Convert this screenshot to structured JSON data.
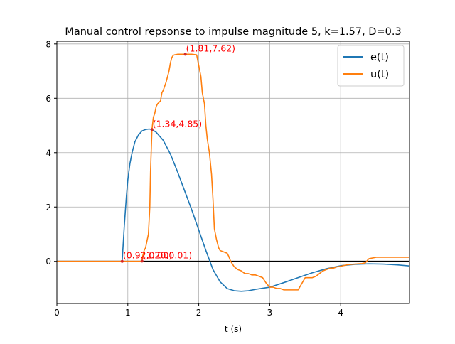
{
  "chart_data": {
    "type": "line",
    "title": "Manual control repsonse to impulse magnitude 5, k=1.57, D=0.3",
    "xlabel": "t (s)",
    "ylabel": "",
    "xlim": [
      0,
      4.97
    ],
    "ylim": [
      -1.55,
      8.1
    ],
    "grid": true,
    "legend_position": "top-right",
    "x_ticks": [
      0,
      1,
      2,
      3,
      4
    ],
    "y_ticks": [
      0,
      2,
      4,
      6,
      8
    ],
    "x_tick_labels": [
      "0",
      "1",
      "2",
      "3",
      "4"
    ],
    "y_tick_labels": [
      "0",
      "2",
      "4",
      "6",
      "8"
    ],
    "series": [
      {
        "name": "e(t)",
        "color": "#1f77b4",
        "x": [
          0,
          0.92,
          0.95,
          0.98,
          1.0,
          1.03,
          1.06,
          1.1,
          1.15,
          1.2,
          1.25,
          1.3,
          1.34,
          1.4,
          1.5,
          1.6,
          1.7,
          1.8,
          1.9,
          2.0,
          2.1,
          2.15,
          2.2,
          2.3,
          2.4,
          2.5,
          2.6,
          2.7,
          2.8,
          2.9,
          3.0,
          3.2,
          3.4,
          3.6,
          3.8,
          4.0,
          4.2,
          4.4,
          4.6,
          4.8,
          4.97
        ],
        "y": [
          0,
          0,
          1.3,
          2.4,
          3.0,
          3.6,
          4.0,
          4.4,
          4.65,
          4.8,
          4.85,
          4.87,
          4.85,
          4.75,
          4.45,
          3.95,
          3.3,
          2.6,
          1.9,
          1.15,
          0.4,
          0.05,
          -0.3,
          -0.75,
          -1.0,
          -1.08,
          -1.1,
          -1.08,
          -1.03,
          -0.99,
          -0.95,
          -0.78,
          -0.6,
          -0.42,
          -0.27,
          -0.16,
          -0.11,
          -0.09,
          -0.1,
          -0.13,
          -0.17
        ]
      },
      {
        "name": "u(t)",
        "color": "#ff7f0e",
        "x": [
          0,
          1.2,
          1.21,
          1.23,
          1.25,
          1.27,
          1.29,
          1.31,
          1.32,
          1.34,
          1.36,
          1.38,
          1.4,
          1.42,
          1.44,
          1.46,
          1.48,
          1.5,
          1.52,
          1.54,
          1.56,
          1.58,
          1.6,
          1.62,
          1.64,
          1.66,
          1.7,
          1.75,
          1.81,
          1.9,
          1.97,
          2.0,
          2.03,
          2.05,
          2.08,
          2.1,
          2.12,
          2.15,
          2.18,
          2.2,
          2.22,
          2.25,
          2.28,
          2.3,
          2.35,
          2.4,
          2.42,
          2.45,
          2.5,
          2.55,
          2.6,
          2.65,
          2.7,
          2.75,
          2.8,
          2.85,
          2.9,
          2.95,
          3.0,
          3.05,
          3.1,
          3.15,
          3.2,
          3.3,
          3.4,
          3.5,
          3.55,
          3.6,
          3.65,
          3.7,
          3.75,
          3.8,
          3.85,
          3.9,
          3.95,
          4.0,
          4.1,
          4.2,
          4.3,
          4.35,
          4.38,
          4.4,
          4.5,
          4.6,
          4.7,
          4.97
        ],
        "y": [
          0,
          0,
          0.2,
          0.4,
          0.5,
          0.75,
          1.0,
          2.0,
          3.3,
          4.85,
          5.3,
          5.45,
          5.7,
          5.8,
          5.85,
          5.9,
          6.2,
          6.3,
          6.45,
          6.6,
          6.8,
          7.0,
          7.3,
          7.5,
          7.58,
          7.6,
          7.62,
          7.62,
          7.62,
          7.62,
          7.6,
          7.2,
          6.8,
          6.2,
          5.8,
          5.0,
          4.5,
          4.0,
          3.2,
          2.3,
          1.2,
          0.8,
          0.5,
          0.4,
          0.35,
          0.3,
          0.2,
          0.0,
          -0.2,
          -0.3,
          -0.35,
          -0.45,
          -0.45,
          -0.5,
          -0.5,
          -0.55,
          -0.6,
          -0.8,
          -0.95,
          -0.95,
          -1.0,
          -1.0,
          -1.05,
          -1.05,
          -1.05,
          -0.6,
          -0.6,
          -0.6,
          -0.55,
          -0.45,
          -0.35,
          -0.3,
          -0.25,
          -0.25,
          -0.2,
          -0.18,
          -0.12,
          -0.1,
          -0.08,
          -0.05,
          0.05,
          0.1,
          0.15,
          0.15,
          0.15,
          0.15
        ]
      }
    ],
    "reference_line": {
      "y": 0,
      "color": "#000000"
    },
    "annotations": [
      {
        "x": 0.92,
        "y": 0,
        "text": "(0.92,0.00)"
      },
      {
        "x": 1.2,
        "y": 0.01,
        "text": "(1.20,0.01)"
      },
      {
        "x": 1.34,
        "y": 4.85,
        "text": "(1.34,4.85)"
      },
      {
        "x": 1.81,
        "y": 7.62,
        "text": "(1.81,7.62)"
      }
    ],
    "annotation_color": "#ff0000"
  }
}
